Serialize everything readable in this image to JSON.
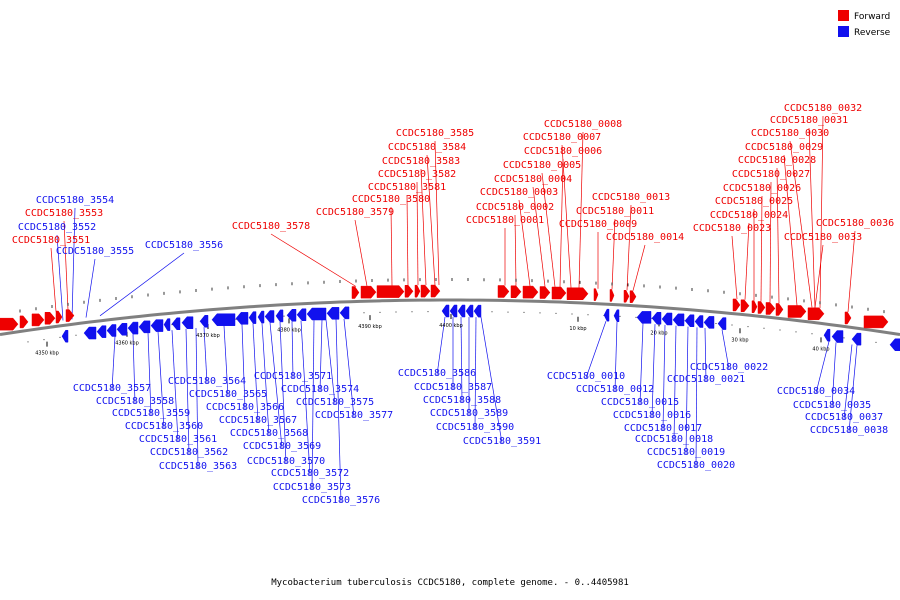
{
  "colors": {
    "forward": "#ee0000",
    "reverse": "#1111ee",
    "track": "#808080"
  },
  "legend": {
    "items": [
      {
        "label": "Forward",
        "color": "#ee0000"
      },
      {
        "label": "Reverse",
        "color": "#1111ee"
      }
    ]
  },
  "caption": "Mycobacterium tuberculosis CCDC5180, complete genome. - 0..4405981",
  "ticks": [
    "4350 kbp",
    "4360 kbp",
    "4370 kbp",
    "4380 kbp",
    "4390 kbp",
    "4400 kbp",
    "10 kbp",
    "20 kbp",
    "30 kbp",
    "40 kbp"
  ],
  "forward_labels": [
    "CCDC5180_3551",
    "CCDC5180_3553",
    "CCDC5180_3578",
    "CCDC5180_3579",
    "CCDC5180_3580",
    "CCDC5180_3581",
    "CCDC5180_3582",
    "CCDC5180_3583",
    "CCDC5180_3584",
    "CCDC5180_3585",
    "CCDC5180_0001",
    "CCDC5180_0002",
    "CCDC5180_0003",
    "CCDC5180_0004",
    "CCDC5180_0005",
    "CCDC5180_0006",
    "CCDC5180_0007",
    "CCDC5180_0008",
    "CCDC5180_0009",
    "CCDC5180_0011",
    "CCDC5180_0013",
    "CCDC5180_0014",
    "CCDC5180_0023",
    "CCDC5180_0024",
    "CCDC5180_0025",
    "CCDC5180_0026",
    "CCDC5180_0027",
    "CCDC5180_0028",
    "CCDC5180_0029",
    "CCDC5180_0030",
    "CCDC5180_0031",
    "CCDC5180_0032",
    "CCDC5180_0033",
    "CCDC5180_0036"
  ],
  "reverse_labels_top": [
    "CCDC5180_3552",
    "CCDC5180_3554",
    "CCDC5180_3555",
    "CCDC5180_3556"
  ],
  "reverse_labels": [
    "CCDC5180_3557",
    "CCDC5180_3558",
    "CCDC5180_3559",
    "CCDC5180_3560",
    "CCDC5180_3561",
    "CCDC5180_3562",
    "CCDC5180_3563",
    "CCDC5180_3564",
    "CCDC5180_3565",
    "CCDC5180_3566",
    "CCDC5180_3567",
    "CCDC5180_3568",
    "CCDC5180_3569",
    "CCDC5180_3570",
    "CCDC5180_3571",
    "CCDC5180_3572",
    "CCDC5180_3573",
    "CCDC5180_3574",
    "CCDC5180_3575",
    "CCDC5180_3576",
    "CCDC5180_3577",
    "CCDC5180_3586",
    "CCDC5180_3587",
    "CCDC5180_3588",
    "CCDC5180_3589",
    "CCDC5180_3590",
    "CCDC5180_3591",
    "CCDC5180_0010",
    "CCDC5180_0012",
    "CCDC5180_0015",
    "CCDC5180_0016",
    "CCDC5180_0017",
    "CCDC5180_0018",
    "CCDC5180_0019",
    "CCDC5180_0020",
    "CCDC5180_0021",
    "CCDC5180_0022",
    "CCDC5180_0034",
    "CCDC5180_0035",
    "CCDC5180_0037",
    "CCDC5180_0038"
  ]
}
